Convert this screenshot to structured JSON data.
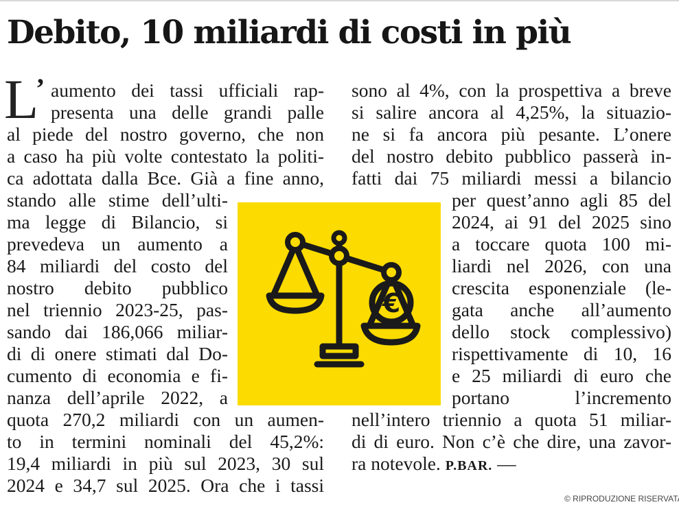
{
  "article": {
    "headline": "Debito, 10 miliardi di costi in più",
    "dropcap": "L",
    "apostrophe": "’",
    "left_column": [
      "aumento dei tassi ufficiali rap-",
      "presenta una delle grandi palle",
      "al piede del nostro governo, che non",
      "a caso ha più volte contestato la politi-",
      "ca adottata dalla Bce. Già a fine anno,",
      "stando alle stime dell’ulti-",
      "ma legge di Bilancio, si",
      "prevedeva un aumento a",
      "84 miliardi del costo del",
      "nostro debito pubblico",
      "nel triennio 2023-25, pas-",
      "sando dai 186,066 miliar-",
      "di di onere stimati dal Do-",
      "cumento di economia e fi-",
      "nanza dell’aprile 2022, a",
      "quota 270,2 miliardi con un aumen-",
      "to in termini nominali del 45,2%:",
      "19,4 miliardi in più sul 2023, 30 sul",
      "2024 e 34,7 sul 2025. Ora che i tassi"
    ],
    "right_column": [
      "sono al 4%, con la prospettiva a breve",
      "si salire ancora al 4,25%, la situazio-",
      "ne si fa ancora più pesante. L’onere",
      "del nostro debito pubblico passerà in-",
      "fatti dai 75 miliardi messi a bilancio",
      "per quest’anno agli 85 del",
      "2024, ai 91 del 2025 sino",
      "a toccare quota 100 mi-",
      "liardi nel 2026, con una",
      "crescita esponenziale (le-",
      "gata anche all’aumento",
      "dello stock complessivo)",
      "rispettivamente di 10, 16",
      "e 25 miliardi di euro che",
      "portano l’incremento",
      "nell’intero triennio a quota 51 miliar-",
      "di di euro. Non c’è che dire, una zavor-",
      "ra notevole."
    ],
    "signature": "P.BAR.",
    "dash": " —",
    "copyright": "© RIPRODUZIONE RISERVATA"
  },
  "illustration": {
    "icon": "balance-scale-euro-icon",
    "euro_symbol": "€",
    "background_color": "#fbdb00",
    "stroke_color": "#1a1a1a"
  }
}
